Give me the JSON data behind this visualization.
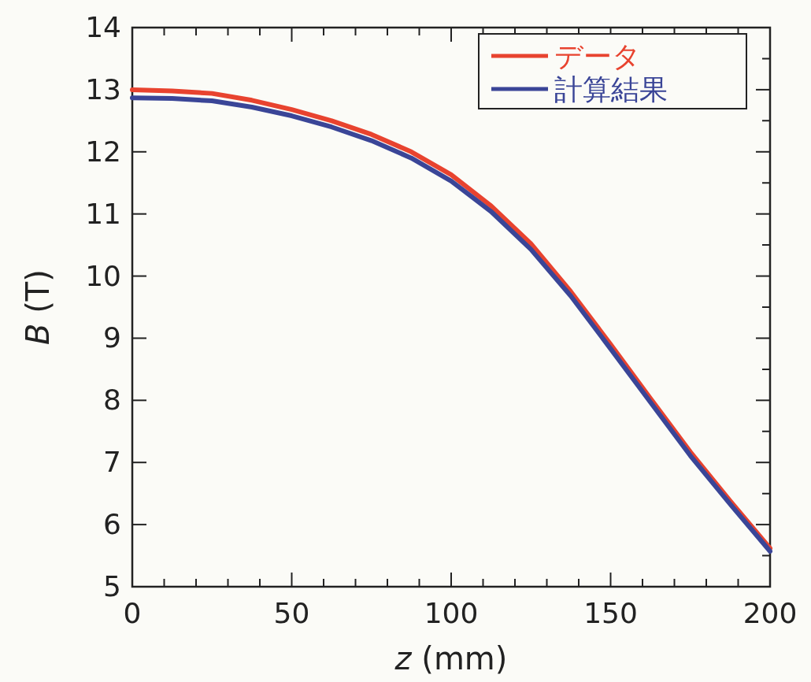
{
  "chart_data": {
    "type": "line",
    "xlabel": "*z* (mm)",
    "ylabel": "*B* (T)",
    "xlim": [
      0,
      200
    ],
    "xticks": [
      0,
      50,
      100,
      150,
      200
    ],
    "ylim": [
      5,
      14
    ],
    "yticks": [
      5,
      6,
      7,
      8,
      9,
      10,
      11,
      12,
      13,
      14
    ],
    "x": [
      0,
      12.5,
      25,
      37.5,
      50,
      62.5,
      75,
      87.5,
      100,
      112.5,
      125,
      137.5,
      150,
      162.5,
      175,
      187.5,
      200
    ],
    "series": [
      {
        "name": "データ",
        "color": "#e8432f",
        "values": [
          13.0,
          12.98,
          12.94,
          12.83,
          12.68,
          12.5,
          12.28,
          12.0,
          11.63,
          11.13,
          10.52,
          9.75,
          8.9,
          8.03,
          7.17,
          6.38,
          5.62
        ]
      },
      {
        "name": "計算結果",
        "color": "#3a4597",
        "values": [
          12.87,
          12.86,
          12.82,
          12.72,
          12.58,
          12.4,
          12.18,
          11.9,
          11.53,
          11.04,
          10.43,
          9.68,
          8.83,
          7.97,
          7.11,
          6.33,
          5.57
        ]
      }
    ],
    "legend": "top right",
    "grid": false,
    "line_style": "solid",
    "marker": "none"
  }
}
